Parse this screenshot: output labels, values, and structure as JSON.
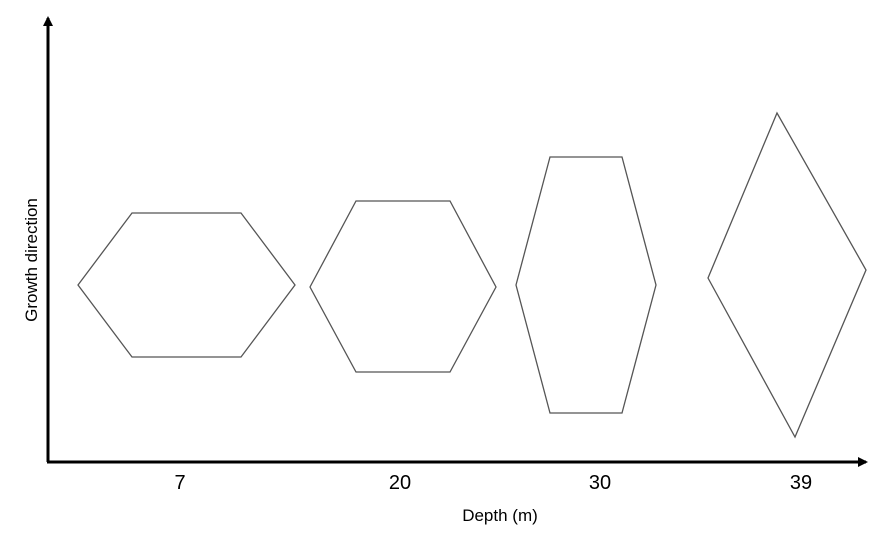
{
  "x_axis_label": "Depth (m)",
  "y_axis_label": "Growth direction",
  "depths": [
    "7",
    "20",
    "30",
    "39"
  ]
}
